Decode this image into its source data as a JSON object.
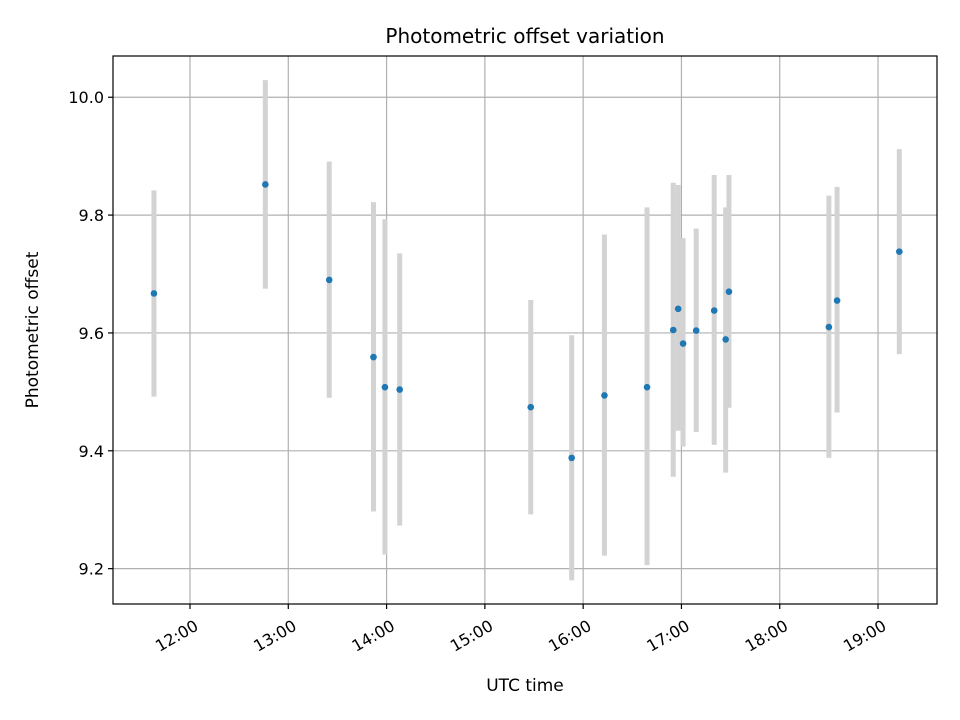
{
  "chart_data": {
    "type": "scatter",
    "title": "Photometric offset variation",
    "xlabel": "UTC time",
    "ylabel": "Photometric offset",
    "grid": true,
    "x_axis": {
      "kind": "time",
      "range": [
        "11:13",
        "19:36"
      ],
      "ticks": [
        "12:00",
        "13:00",
        "14:00",
        "15:00",
        "16:00",
        "17:00",
        "18:00",
        "19:00"
      ]
    },
    "y_axis": {
      "range": [
        9.14,
        10.07
      ],
      "ticks": [
        9.2,
        9.4,
        9.6,
        9.8,
        10.0
      ],
      "tick_labels": [
        "9.2",
        "9.4",
        "9.6",
        "9.8",
        "10.0"
      ]
    },
    "point_color": "#1f77b4",
    "errorbar_color": "#d3d3d3",
    "points": [
      {
        "time": "11:38",
        "y": 9.667,
        "ylow": 9.492,
        "yhigh": 9.842
      },
      {
        "time": "12:46",
        "y": 9.852,
        "ylow": 9.675,
        "yhigh": 10.029
      },
      {
        "time": "13:25",
        "y": 9.69,
        "ylow": 9.49,
        "yhigh": 9.891
      },
      {
        "time": "13:52",
        "y": 9.559,
        "ylow": 9.297,
        "yhigh": 9.822
      },
      {
        "time": "13:59",
        "y": 9.508,
        "ylow": 9.224,
        "yhigh": 9.793
      },
      {
        "time": "14:08",
        "y": 9.504,
        "ylow": 9.273,
        "yhigh": 9.735
      },
      {
        "time": "15:28",
        "y": 9.474,
        "ylow": 9.292,
        "yhigh": 9.656
      },
      {
        "time": "15:53",
        "y": 9.388,
        "ylow": 9.18,
        "yhigh": 9.596
      },
      {
        "time": "16:13",
        "y": 9.494,
        "ylow": 9.222,
        "yhigh": 9.767
      },
      {
        "time": "16:39",
        "y": 9.508,
        "ylow": 9.206,
        "yhigh": 9.813
      },
      {
        "time": "16:55",
        "y": 9.605,
        "ylow": 9.356,
        "yhigh": 9.855
      },
      {
        "time": "16:58",
        "y": 9.641,
        "ylow": 9.434,
        "yhigh": 9.851
      },
      {
        "time": "17:01",
        "y": 9.582,
        "ylow": 9.407,
        "yhigh": 9.761
      },
      {
        "time": "17:09",
        "y": 9.604,
        "ylow": 9.432,
        "yhigh": 9.777
      },
      {
        "time": "17:20",
        "y": 9.638,
        "ylow": 9.41,
        "yhigh": 9.868
      },
      {
        "time": "17:27",
        "y": 9.589,
        "ylow": 9.363,
        "yhigh": 9.813
      },
      {
        "time": "17:29",
        "y": 9.67,
        "ylow": 9.473,
        "yhigh": 9.868
      },
      {
        "time": "18:30",
        "y": 9.61,
        "ylow": 9.388,
        "yhigh": 9.833
      },
      {
        "time": "18:35",
        "y": 9.655,
        "ylow": 9.465,
        "yhigh": 9.848
      },
      {
        "time": "19:13",
        "y": 9.738,
        "ylow": 9.564,
        "yhigh": 9.912
      }
    ]
  }
}
